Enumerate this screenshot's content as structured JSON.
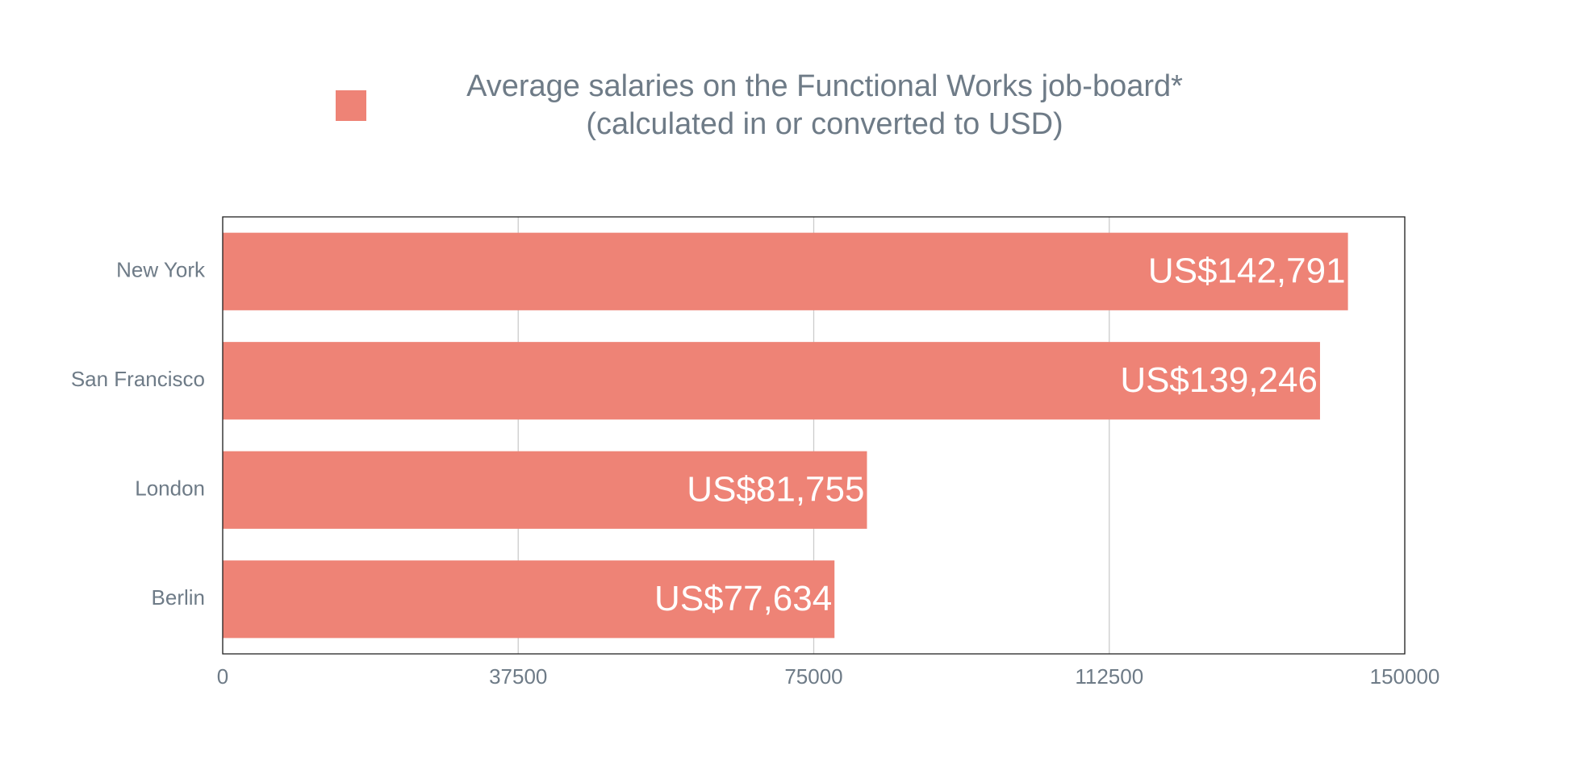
{
  "chart_data": {
    "type": "bar",
    "orientation": "horizontal",
    "categories": [
      "New York",
      "San Francisco",
      "London",
      "Berlin"
    ],
    "series": [
      {
        "name": "Average salaries on the Functional Works job-board* (calculated in or converted to USD)",
        "color": "#ee8376",
        "values": [
          142791,
          139246,
          81755,
          77634
        ],
        "value_labels": [
          "US$142,791",
          "US$139,246",
          "US$81,755",
          "US$77,634"
        ]
      }
    ],
    "xlim": [
      0,
      150000
    ],
    "xticks": [
      0,
      37500,
      75000,
      112500,
      150000
    ],
    "grid": true,
    "legend": "top"
  }
}
